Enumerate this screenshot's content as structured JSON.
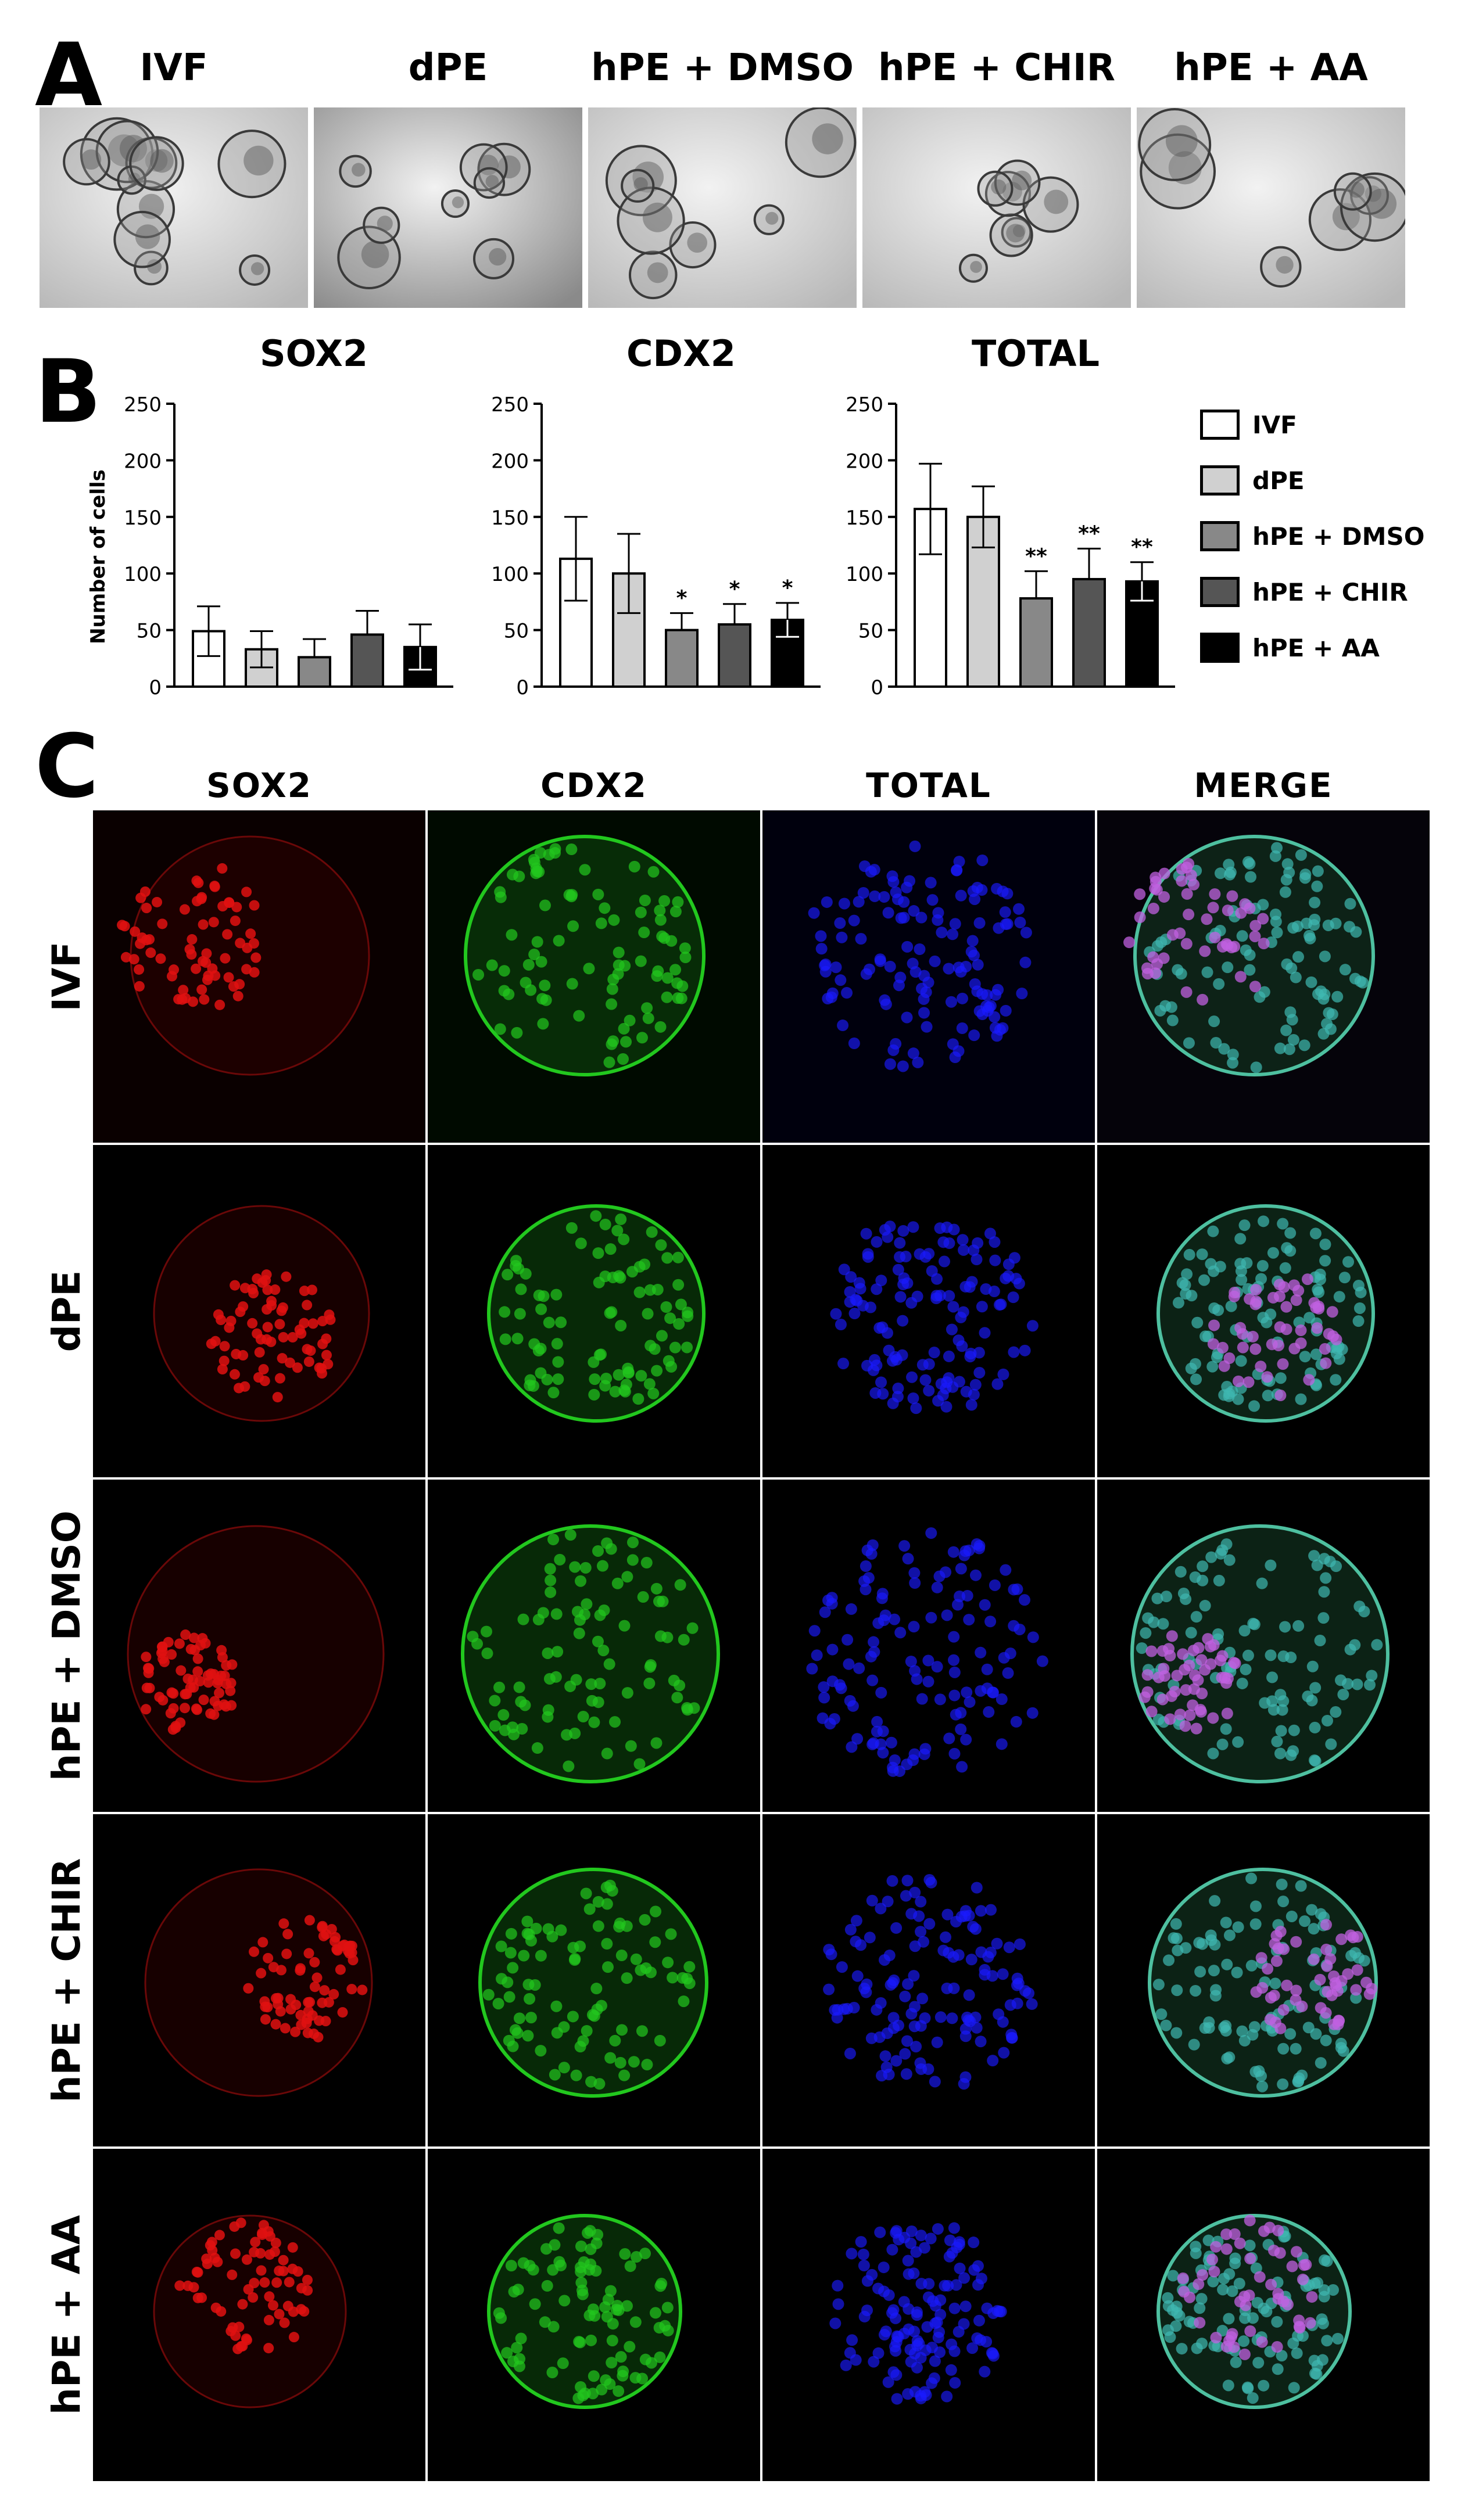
{
  "panels": {
    "a": "A",
    "b": "B",
    "c": "C"
  },
  "conditions": [
    "IVF",
    "dPE",
    "hPE + DMSO",
    "hPE + CHIR",
    "hPE + AA"
  ],
  "markers": [
    "SOX2",
    "CDX2",
    "TOTAL",
    "MERGE"
  ],
  "colors": {
    "sox2": "#e01010",
    "cdx2": "#22c81e",
    "total": "#1a1aff",
    "bars": [
      "#ffffff",
      "#d0d0d0",
      "#888888",
      "#555555",
      "#000000"
    ]
  },
  "chart_data": [
    {
      "type": "bar",
      "title": "SOX2",
      "ylabel": "Number of cells",
      "categories": [
        "IVF",
        "dPE",
        "hPE + DMSO",
        "hPE + CHIR",
        "hPE + AA"
      ],
      "values": [
        49,
        33,
        26,
        46,
        35
      ],
      "errors": [
        22,
        16,
        16,
        21,
        20
      ],
      "annotations": [
        "",
        "",
        "",
        "",
        ""
      ],
      "ylim": [
        0,
        250
      ],
      "yticks": [
        0,
        50,
        100,
        150,
        200,
        250
      ]
    },
    {
      "type": "bar",
      "title": "CDX2",
      "ylabel": "",
      "categories": [
        "IVF",
        "dPE",
        "hPE + DMSO",
        "hPE + CHIR",
        "hPE + AA"
      ],
      "values": [
        113,
        100,
        50,
        55,
        59
      ],
      "errors": [
        37,
        35,
        15,
        18,
        15
      ],
      "annotations": [
        "",
        "",
        "*",
        "*",
        "*"
      ],
      "ylim": [
        0,
        250
      ],
      "yticks": [
        0,
        50,
        100,
        150,
        200,
        250
      ]
    },
    {
      "type": "bar",
      "title": "TOTAL",
      "ylabel": "",
      "categories": [
        "IVF",
        "dPE",
        "hPE + DMSO",
        "hPE + CHIR",
        "hPE + AA"
      ],
      "values": [
        157,
        150,
        78,
        95,
        93
      ],
      "errors": [
        40,
        27,
        24,
        27,
        17
      ],
      "annotations": [
        "",
        "",
        "**",
        "**",
        "**"
      ],
      "ylim": [
        0,
        250
      ],
      "yticks": [
        0,
        50,
        100,
        150,
        200,
        250
      ]
    }
  ]
}
